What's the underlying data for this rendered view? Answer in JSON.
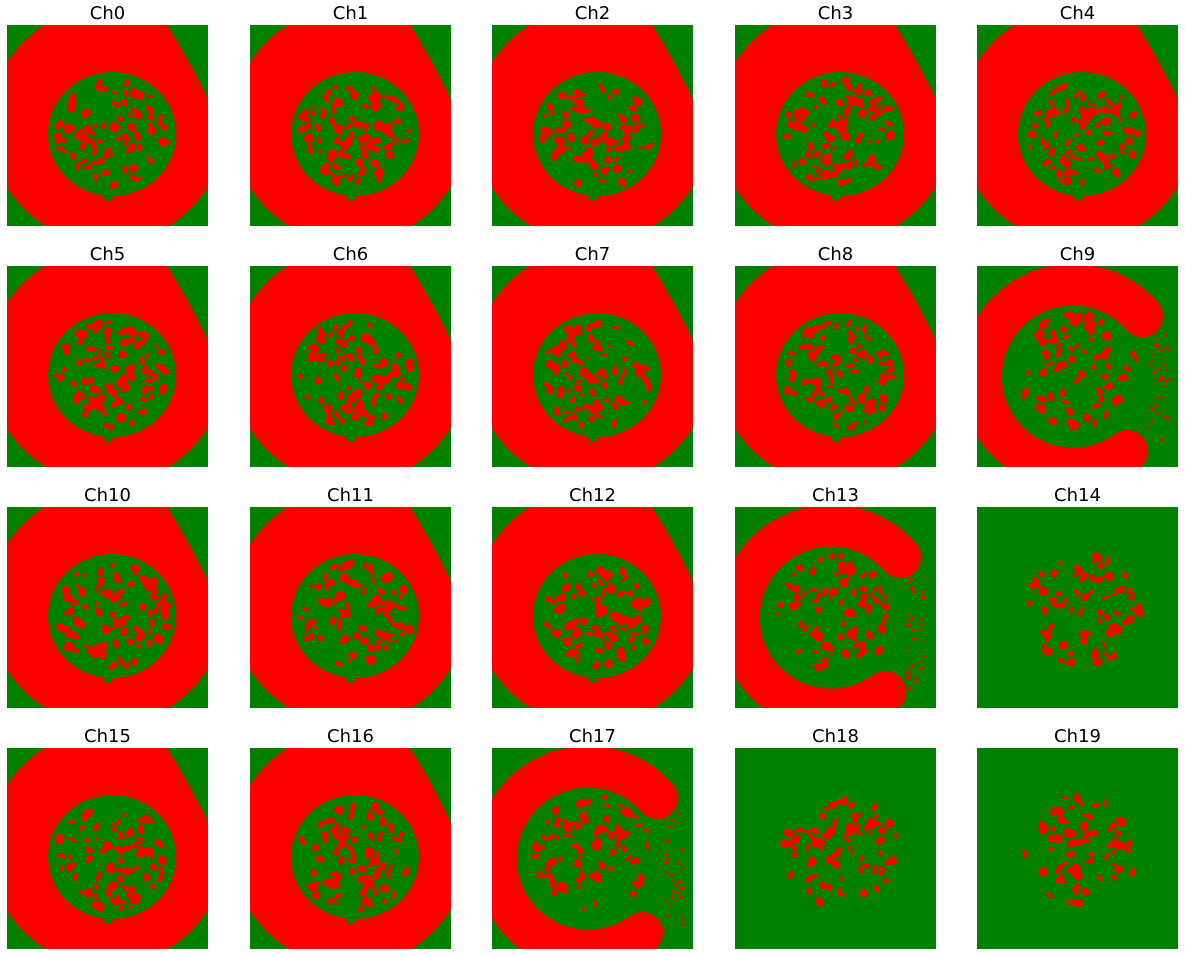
{
  "colors": {
    "background": "#008000",
    "mask": "#ff0000",
    "title_text": "#000000"
  },
  "panels": [
    {
      "title": "Ch0",
      "variant": "full-ring"
    },
    {
      "title": "Ch1",
      "variant": "full-ring"
    },
    {
      "title": "Ch2",
      "variant": "full-ring"
    },
    {
      "title": "Ch3",
      "variant": "full-ring"
    },
    {
      "title": "Ch4",
      "variant": "full-ring"
    },
    {
      "title": "Ch5",
      "variant": "full-ring"
    },
    {
      "title": "Ch6",
      "variant": "full-ring"
    },
    {
      "title": "Ch7",
      "variant": "full-ring"
    },
    {
      "title": "Ch8",
      "variant": "full-ring"
    },
    {
      "title": "Ch9",
      "variant": "crescent"
    },
    {
      "title": "Ch10",
      "variant": "full-ring"
    },
    {
      "title": "Ch11",
      "variant": "full-ring"
    },
    {
      "title": "Ch12",
      "variant": "full-ring"
    },
    {
      "title": "Ch13",
      "variant": "crescent"
    },
    {
      "title": "Ch14",
      "variant": "spots-only"
    },
    {
      "title": "Ch15",
      "variant": "full-ring"
    },
    {
      "title": "Ch16",
      "variant": "full-ring"
    },
    {
      "title": "Ch17",
      "variant": "crescent"
    },
    {
      "title": "Ch18",
      "variant": "spots-only"
    },
    {
      "title": "Ch19",
      "variant": "spots-only"
    }
  ]
}
